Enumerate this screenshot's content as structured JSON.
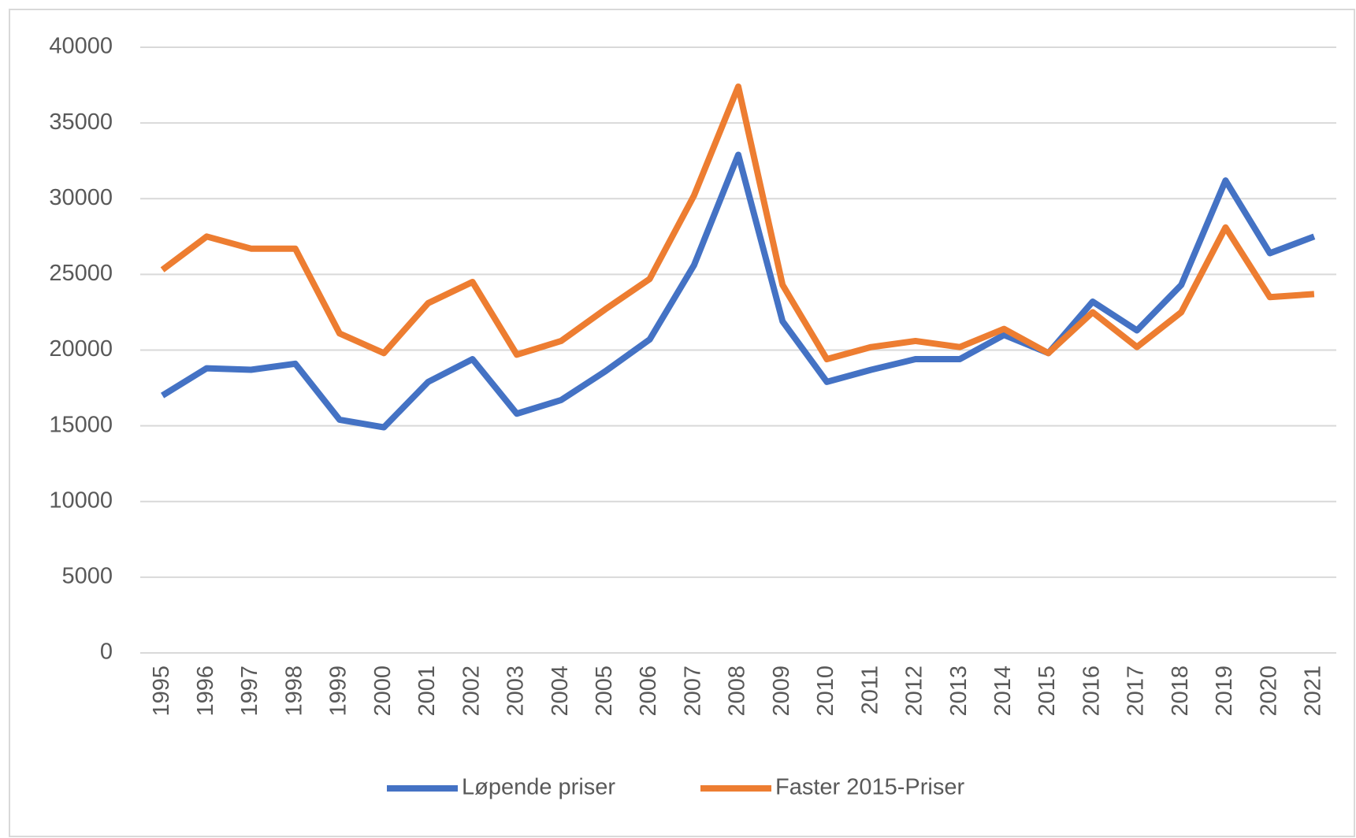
{
  "chart_data": {
    "type": "line",
    "categories": [
      "1995",
      "1996",
      "1997",
      "1998",
      "1999",
      "2000",
      "2001",
      "2002",
      "2003",
      "2004",
      "2005",
      "2006",
      "2007",
      "2008",
      "2009",
      "2010",
      "2011",
      "2012",
      "2013",
      "2014",
      "2015",
      "2016",
      "2017",
      "2018",
      "2019",
      "2020",
      "2021"
    ],
    "series": [
      {
        "name": "Løpende priser",
        "color": "#4472c4",
        "values": [
          17000,
          18800,
          18700,
          19100,
          15400,
          14900,
          17900,
          19400,
          15800,
          16700,
          18600,
          20700,
          25600,
          32900,
          21900,
          17900,
          18700,
          19400,
          19400,
          21000,
          19800,
          23200,
          21300,
          24300,
          31200,
          26400,
          27500
        ]
      },
      {
        "name": "Faster 2015-Priser",
        "color": "#ed7d31",
        "values": [
          25300,
          27500,
          26700,
          26700,
          21100,
          19800,
          23100,
          24500,
          19700,
          20600,
          22700,
          24700,
          30200,
          37400,
          24300,
          19400,
          20200,
          20600,
          20200,
          21400,
          19800,
          22500,
          20200,
          22500,
          28100,
          23500,
          23700
        ]
      }
    ],
    "ylim": [
      0,
      40000
    ],
    "yticks": [
      0,
      5000,
      10000,
      15000,
      20000,
      25000,
      30000,
      35000,
      40000
    ],
    "grid": true,
    "legend": "bottom"
  }
}
